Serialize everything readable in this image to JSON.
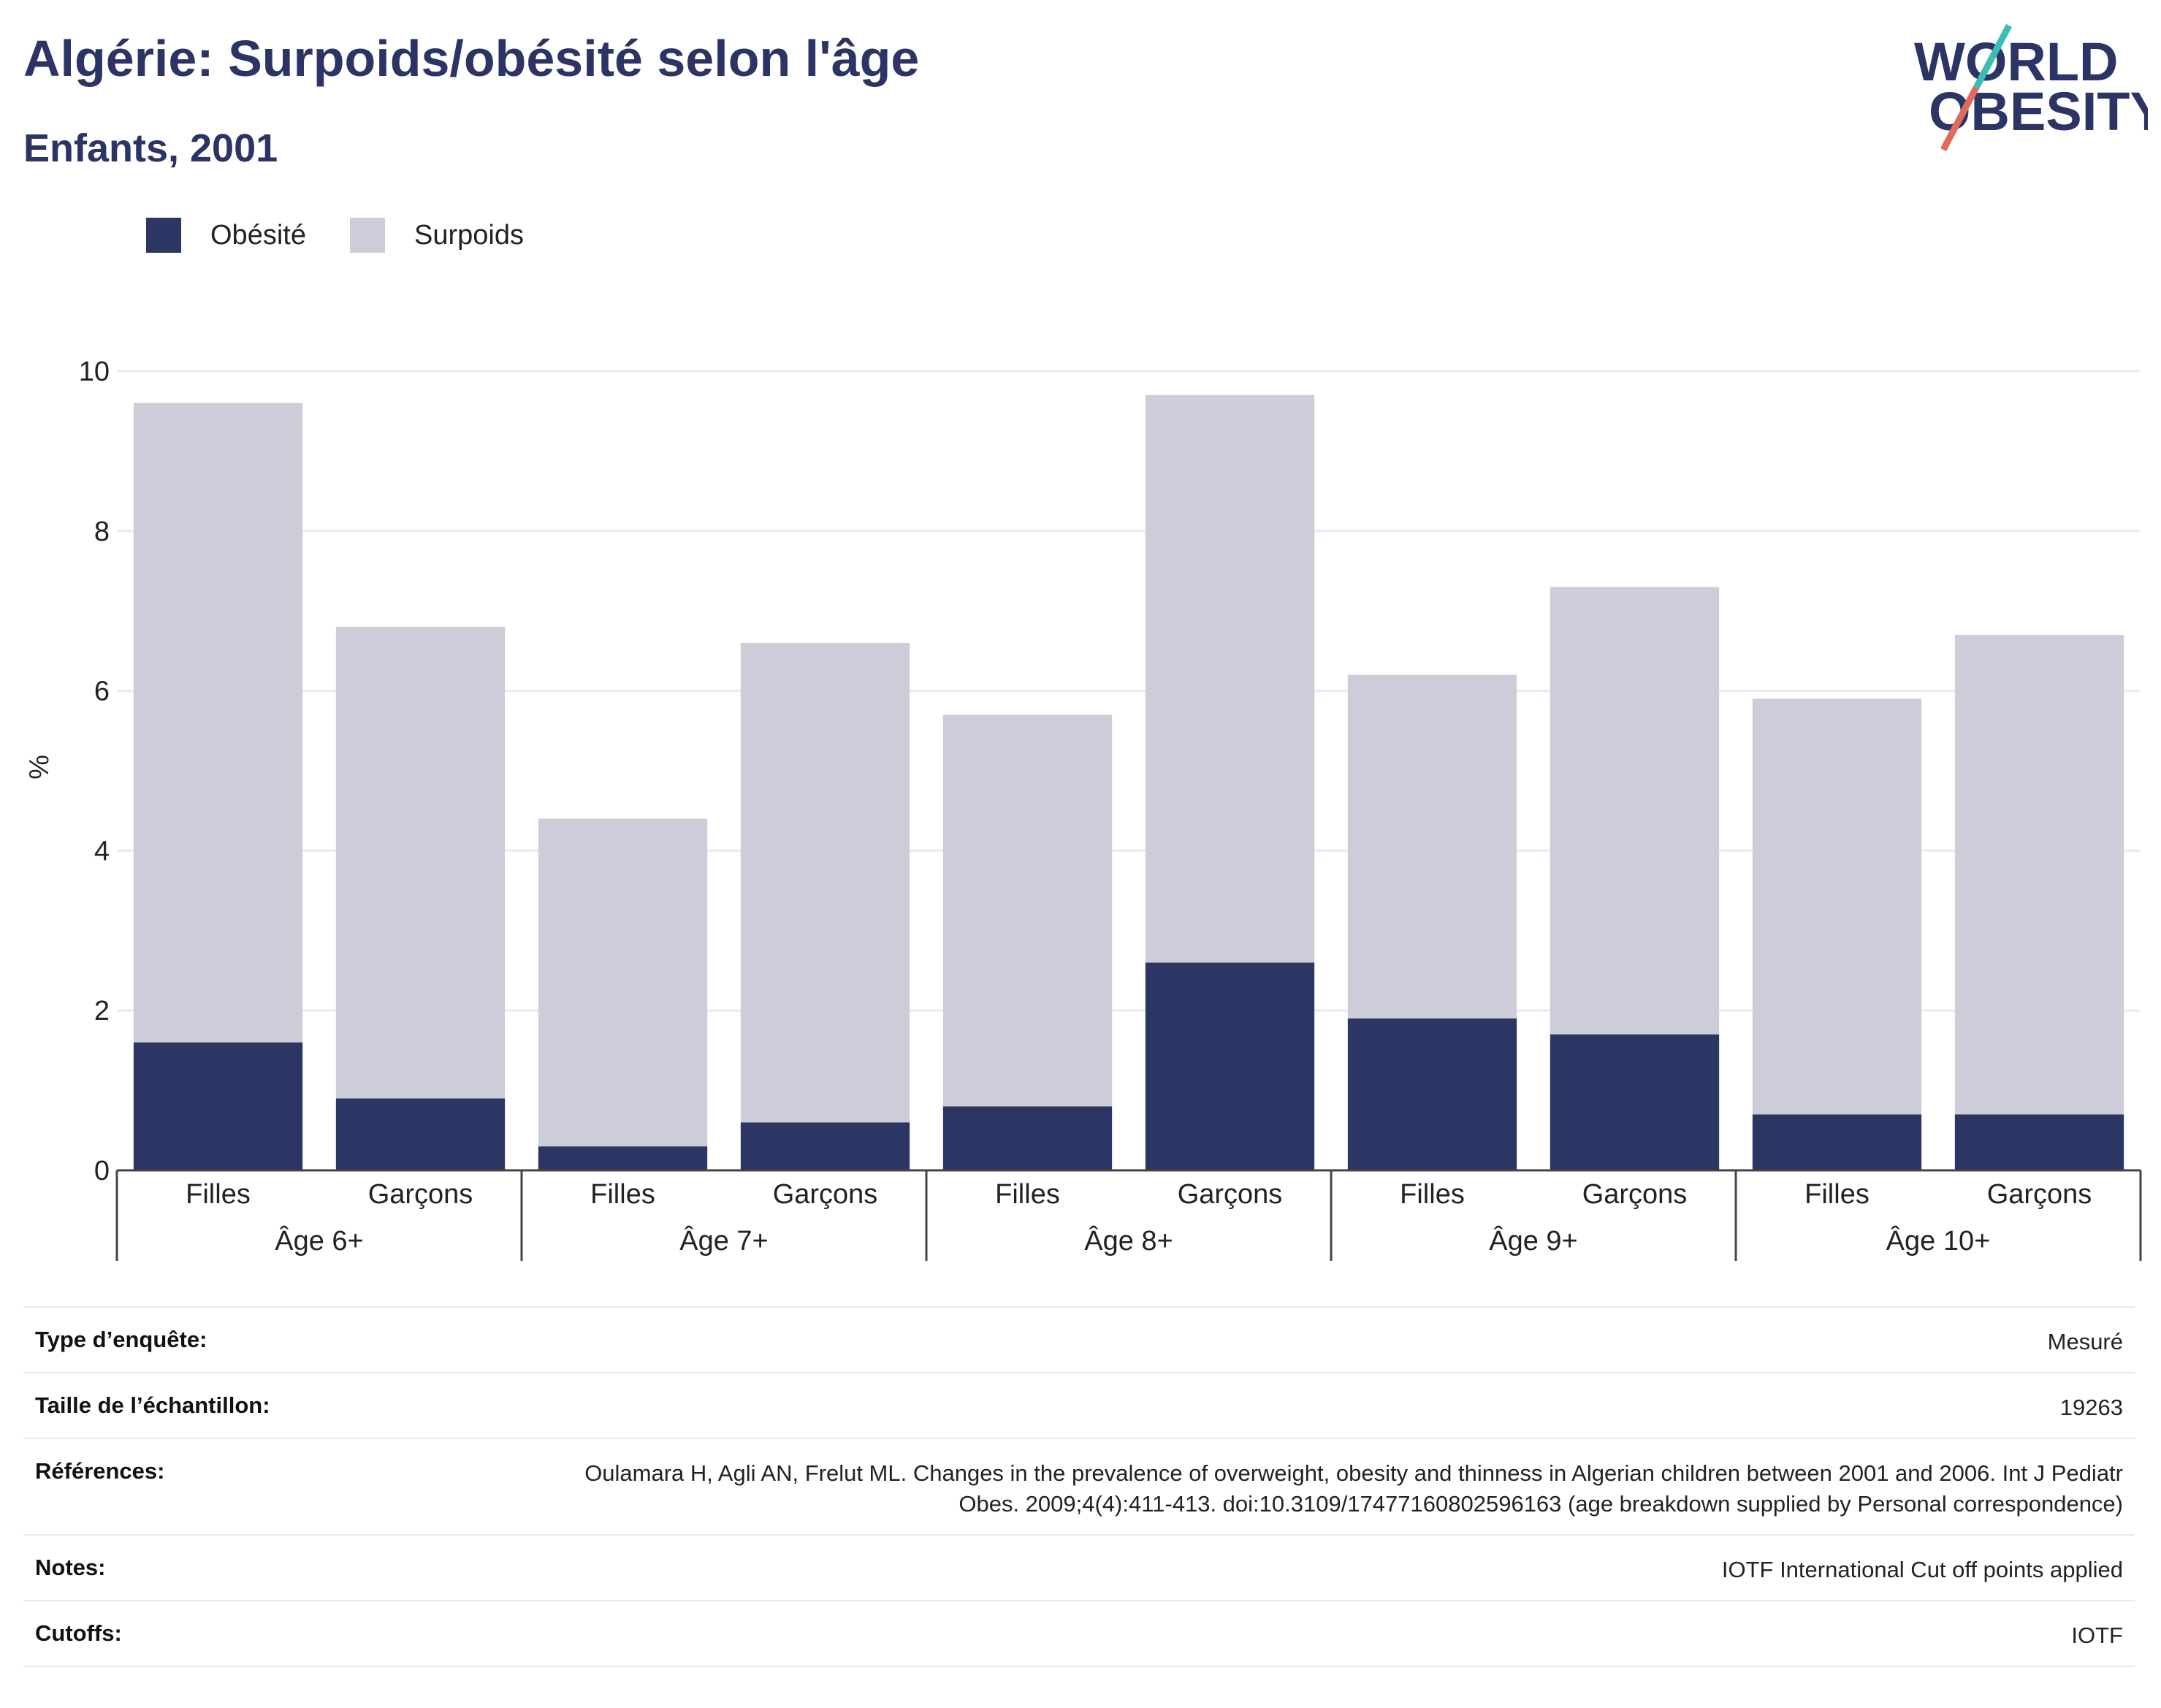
{
  "header": {
    "title": "Algérie: Surpoids/obésité selon l'âge",
    "subtitle": "Enfants, 2001"
  },
  "logo": {
    "line1": "WORLD",
    "line2": "OBESITY"
  },
  "colors": {
    "obesity": "#2b3664",
    "overweight": "#cccdd9",
    "title": "#2b3464",
    "logo_slash_top": "#3bbcb5",
    "logo_slash_bottom": "#e06b5a"
  },
  "chart_data": {
    "type": "bar",
    "stacked": true,
    "ylabel": "%",
    "ylim": [
      0,
      10
    ],
    "yticks": [
      0,
      2,
      4,
      6,
      8,
      10
    ],
    "grid": true,
    "legend_position": "top-left",
    "groups": [
      "Âge 6+",
      "Âge 7+",
      "Âge 8+",
      "Âge 9+",
      "Âge 10+"
    ],
    "categories": [
      "Filles",
      "Garçons",
      "Filles",
      "Garçons",
      "Filles",
      "Garçons",
      "Filles",
      "Garçons",
      "Filles",
      "Garçons"
    ],
    "series": [
      {
        "name": "Obésité",
        "values": [
          1.6,
          0.9,
          0.3,
          0.6,
          0.8,
          2.6,
          1.9,
          1.7,
          0.7,
          0.7
        ]
      },
      {
        "name": "Surpoids",
        "values": [
          8.0,
          5.9,
          4.1,
          6.0,
          4.9,
          7.1,
          4.3,
          5.6,
          5.2,
          6.0
        ]
      }
    ]
  },
  "info_table": [
    {
      "label": "Type d’enquête:",
      "value": "Mesuré"
    },
    {
      "label": "Taille de l’échantillon:",
      "value": "19263"
    },
    {
      "label": "Références:",
      "value": "Oulamara H, Agli AN, Frelut ML. Changes in the prevalence of overweight, obesity and thinness in Algerian children between 2001 and 2006. Int J Pediatr Obes. 2009;4(4):411-413. doi:10.3109/17477160802596163 (age breakdown supplied by Personal correspondence)"
    },
    {
      "label": "Notes:",
      "value": "IOTF International Cut off points applied"
    },
    {
      "label": "Cutoffs:",
      "value": "IOTF"
    }
  ]
}
